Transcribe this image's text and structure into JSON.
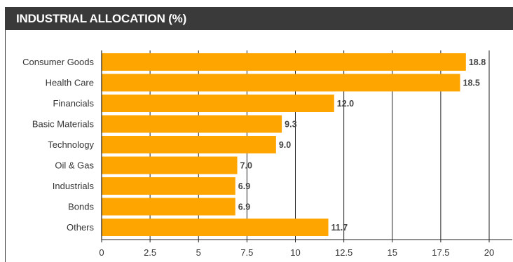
{
  "chart_data": {
    "type": "bar",
    "orientation": "horizontal",
    "title": "INDUSTRIAL ALLOCATION (%)",
    "categories": [
      "Consumer Goods",
      "Health Care",
      "Financials",
      "Basic Materials",
      "Technology",
      "Oil & Gas",
      "Industrials",
      "Bonds",
      "Others"
    ],
    "values": [
      18.8,
      18.5,
      12.0,
      9.3,
      9.0,
      7.0,
      6.9,
      6.9,
      11.7
    ],
    "value_labels": [
      "18.8",
      "18.5",
      "12.0",
      "9.3",
      "9.0",
      "7.0",
      "6.9",
      "6.9",
      "11.7"
    ],
    "xlim": [
      0,
      20
    ],
    "ticks": [
      0,
      2.5,
      5,
      7.5,
      10,
      12.5,
      15,
      17.5,
      20
    ],
    "tick_labels": [
      "0",
      "2.5",
      "5",
      "7.5",
      "10",
      "12.5",
      "15",
      "17.5",
      "20"
    ],
    "grid": "vertical",
    "legend": "none",
    "bar_color": "#ffa500",
    "header_color": "#3a3a3a"
  }
}
